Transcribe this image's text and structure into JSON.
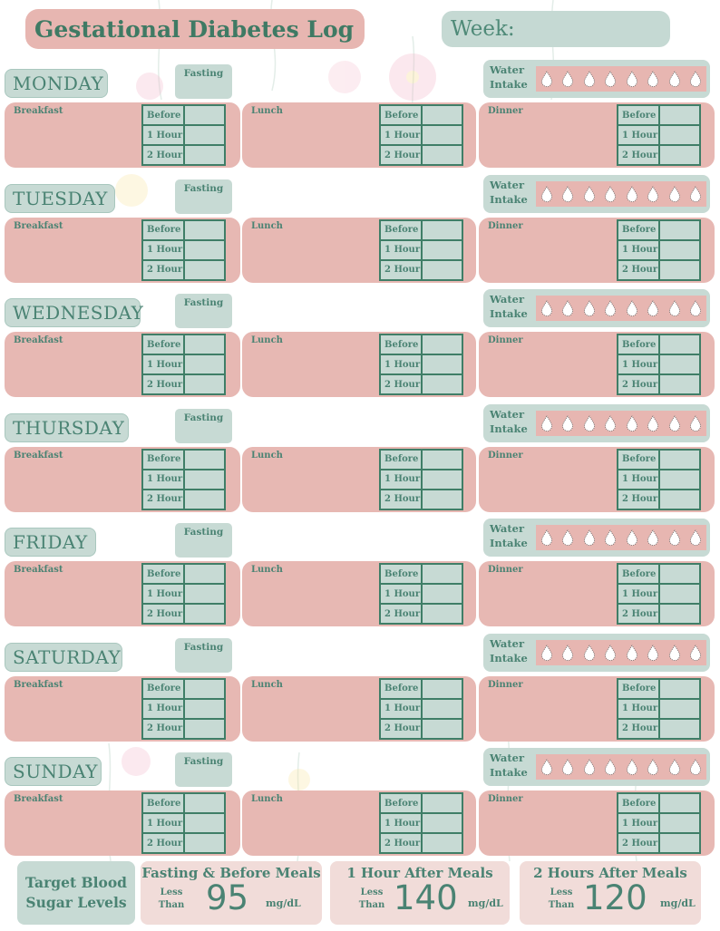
{
  "title": "Gestational Diabetes Log",
  "week_label": "Week:",
  "fasting_label": "Fasting",
  "water_label_line1": "Water",
  "water_label_line2": "Intake",
  "water_glasses": 8,
  "meals": [
    "Breakfast",
    "Lunch",
    "Dinner"
  ],
  "reading_labels": [
    "Before",
    "1 Hour",
    "2 Hour"
  ],
  "days": [
    "MONDAY",
    "TUESDAY",
    "WEDNESDAY",
    "THURSDAY",
    "FRIDAY",
    "SATURDAY",
    "SUNDAY"
  ],
  "target": {
    "heading_line1": "Target Blood",
    "heading_line2": "Sugar Levels",
    "items": [
      {
        "title": "Fasting & Before Meals",
        "less_line1": "Less",
        "less_line2": "Than",
        "value": "95",
        "unit": "mg/dL"
      },
      {
        "title": "1 Hour After Meals",
        "less_line1": "Less",
        "less_line2": "Than",
        "value": "140",
        "unit": "mg/dL"
      },
      {
        "title": "2 Hours After Meals",
        "less_line1": "Less",
        "less_line2": "Than",
        "value": "120",
        "unit": "mg/dL"
      }
    ]
  },
  "colors": {
    "pink": "#e7b8b3",
    "mint": "#c7dad4",
    "green": "#3f7e67",
    "text": "#4a8373"
  }
}
